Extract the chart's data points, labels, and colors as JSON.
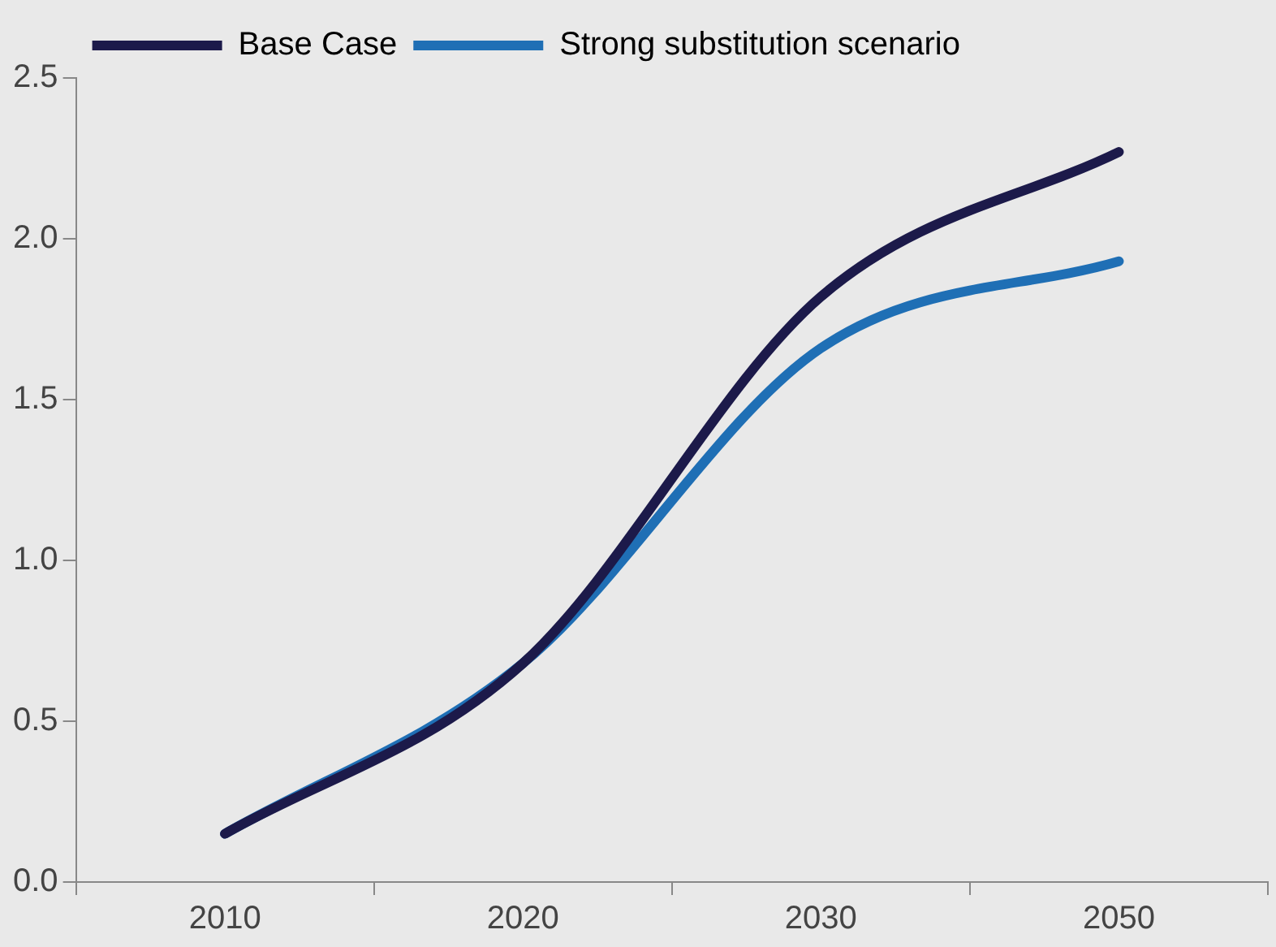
{
  "chart_data": {
    "type": "line",
    "categories": [
      "2010",
      "2020",
      "2030",
      "2050"
    ],
    "series": [
      {
        "name": "Base Case",
        "color": "#1c1a4a",
        "values": [
          0.15,
          0.68,
          1.82,
          2.27
        ]
      },
      {
        "name": "Strong substitution scenario",
        "color": "#1f6fb5",
        "values": [
          0.15,
          0.68,
          1.66,
          1.93
        ]
      }
    ],
    "ylim": [
      0,
      2.5
    ],
    "yticks": [
      {
        "value": 0,
        "label": "0.0"
      },
      0.5,
      {
        "value": 1,
        "label": "1.0"
      },
      1.5,
      {
        "value": 2,
        "label": "2.0"
      },
      2.5
    ],
    "grid": false,
    "legend": "top left",
    "marker": "none",
    "line_style": "solid"
  }
}
